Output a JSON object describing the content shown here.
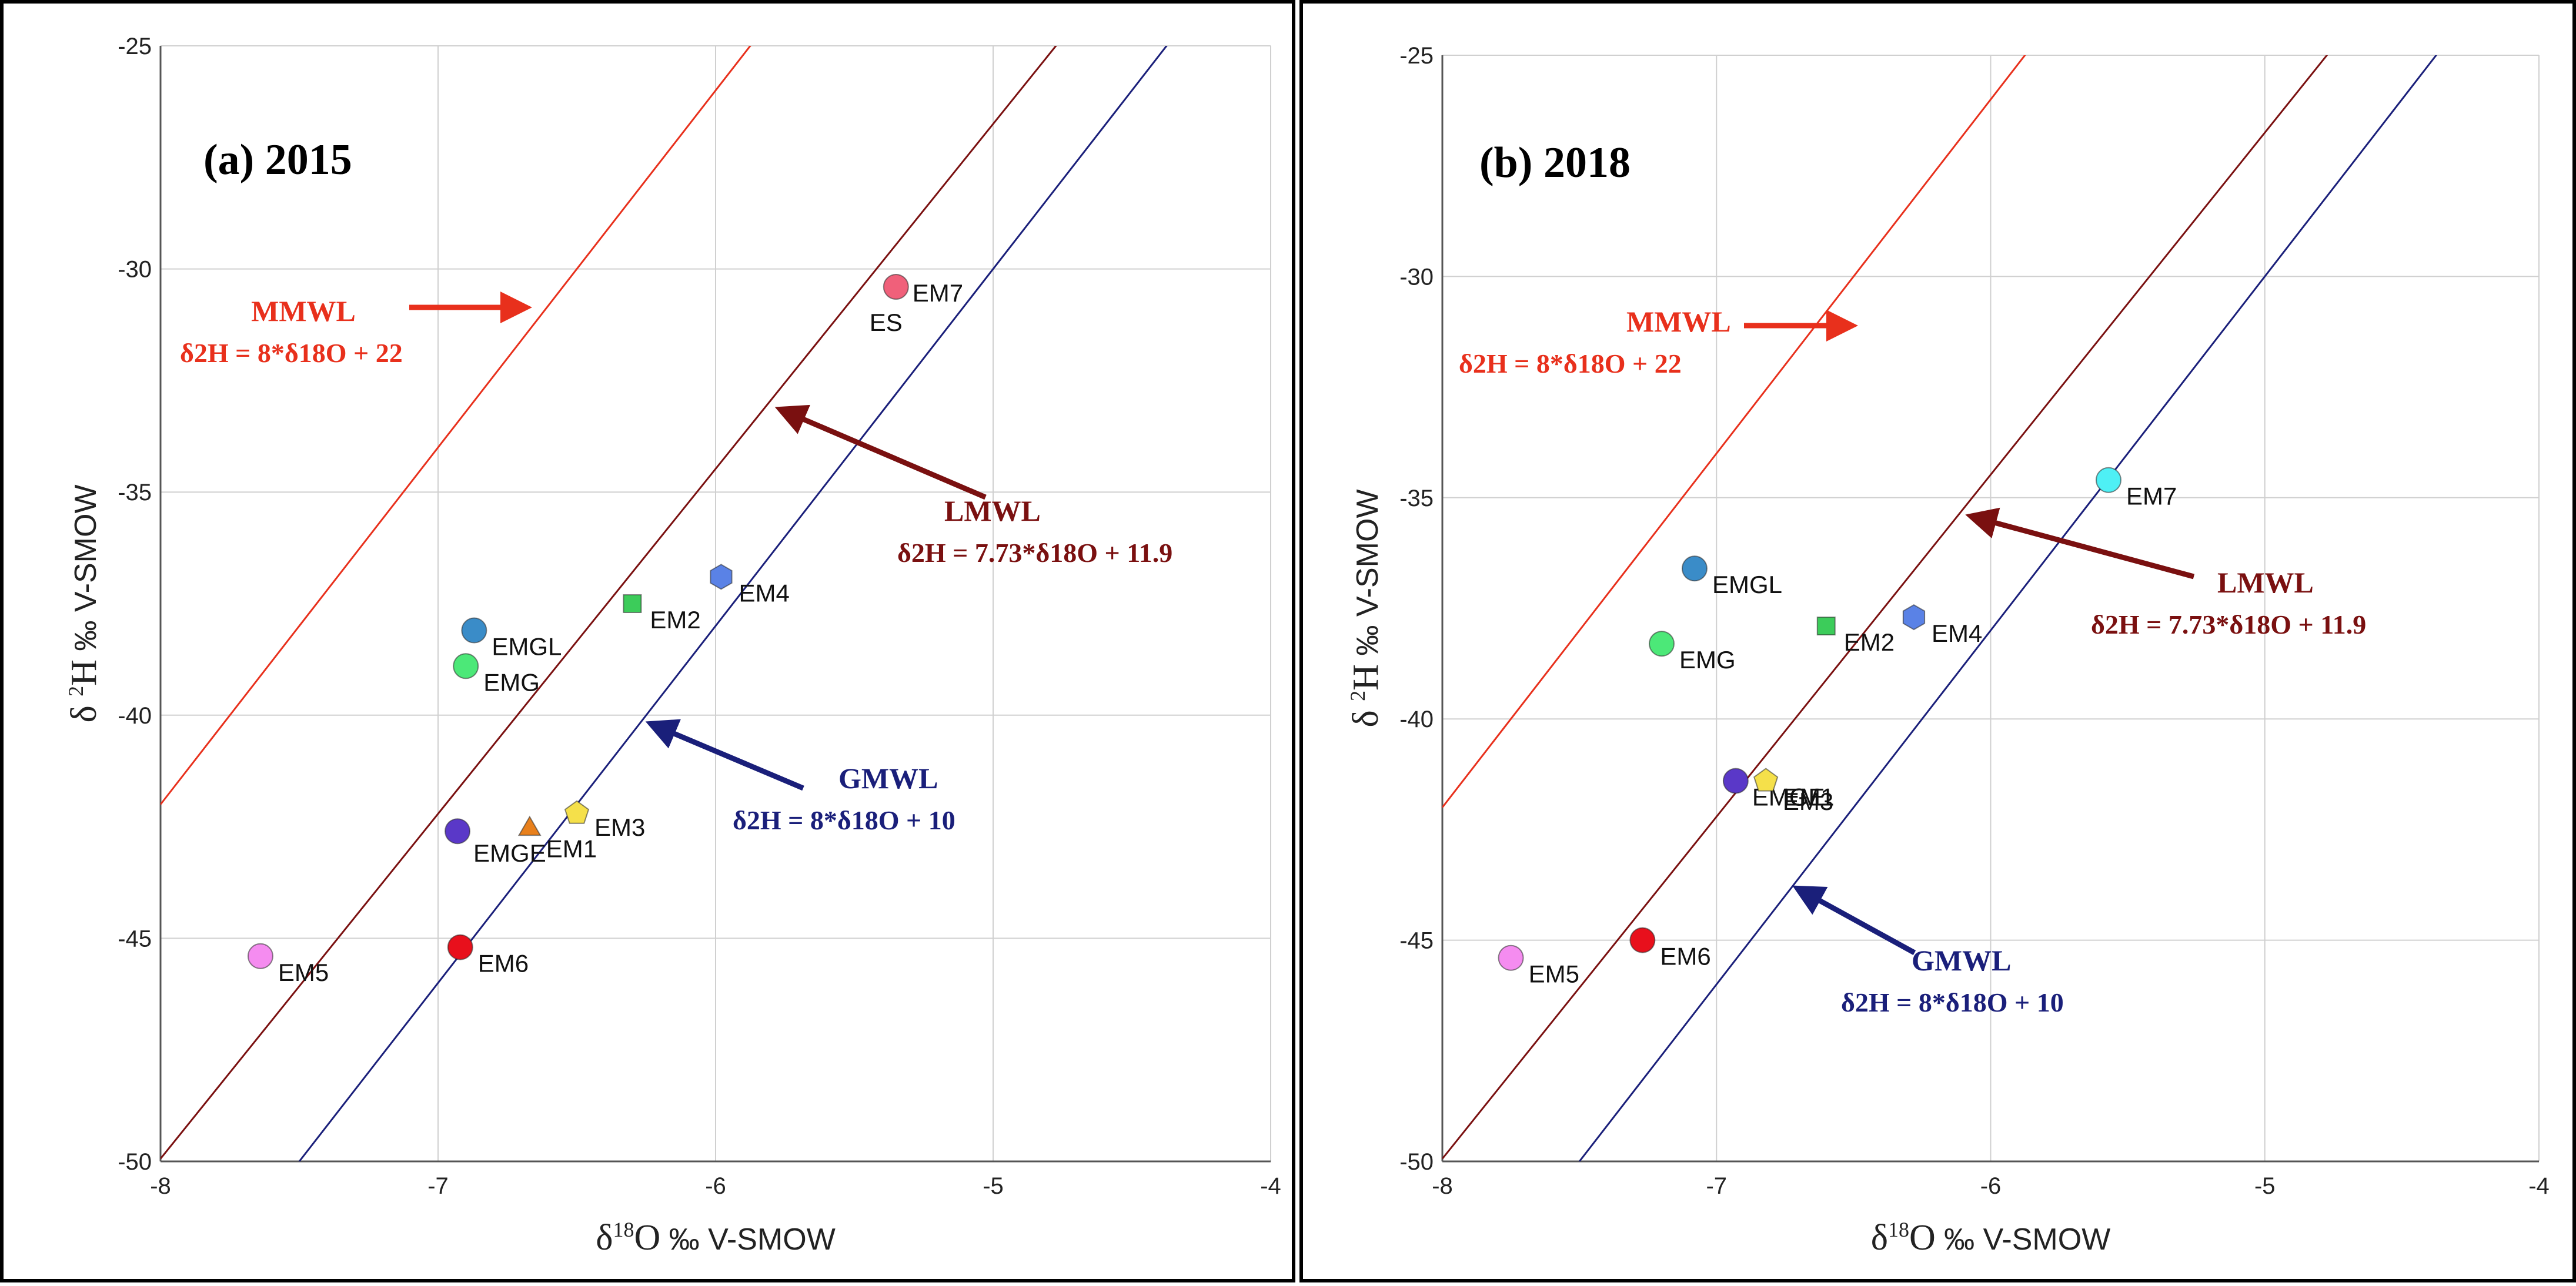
{
  "chart_data": [
    {
      "type": "scatter",
      "title": "(a) 2015",
      "xlabel": {
        "prefix": "δ",
        "sup": "18",
        "main": "O",
        "suffix": " ‰ V-SMOW"
      },
      "ylabel": {
        "prefix": "δ ",
        "sup": "2",
        "main": "H",
        "suffix": " ‰ V-SMOW"
      },
      "xlim": [
        -8,
        -4
      ],
      "ylim": [
        -50,
        -25
      ],
      "x_ticks": [
        -8,
        -7,
        -6,
        -5,
        -4
      ],
      "y_ticks": [
        -50,
        -45,
        -40,
        -35,
        -30,
        -25
      ],
      "grid": true,
      "lines": [
        {
          "name": "MMWL",
          "equation": "δ2H = 8*δ18O + 22",
          "slope": 8,
          "intercept": 22,
          "color": "#e8301c"
        },
        {
          "name": "LMWL",
          "equation": "δ2H = 7.73*δ18O + 11.9",
          "slope": 7.73,
          "intercept": 11.9,
          "color": "#7a1010"
        },
        {
          "name": "GMWL",
          "equation": "δ2H = 8*δ18O + 10",
          "slope": 8,
          "intercept": 10,
          "color": "#1a1f7a"
        }
      ],
      "points": [
        {
          "label": "EM7",
          "extra_label": "ES",
          "x": -5.35,
          "y": -30.4,
          "marker": "circle",
          "color": "#f0607a"
        },
        {
          "label": "EM4",
          "x": -5.98,
          "y": -36.9,
          "marker": "hexagon",
          "color": "#5a82e6"
        },
        {
          "label": "EM2",
          "x": -6.3,
          "y": -37.5,
          "marker": "square",
          "color": "#3ccc5a"
        },
        {
          "label": "EMGL",
          "x": -6.87,
          "y": -38.1,
          "marker": "circle",
          "color": "#3a8cc8"
        },
        {
          "label": "EMG",
          "x": -6.9,
          "y": -38.9,
          "marker": "circle",
          "color": "#4ce878"
        },
        {
          "label": "EM3",
          "x": -6.5,
          "y": -42.2,
          "marker": "pentagon",
          "color": "#f5e04a"
        },
        {
          "label": "EM1",
          "x": -6.67,
          "y": -42.5,
          "marker": "triangle",
          "color": "#e8801c"
        },
        {
          "label": "EMGE",
          "x": -6.93,
          "y": -42.6,
          "marker": "circle",
          "color": "#5a38c8"
        },
        {
          "label": "EM6",
          "x": -6.92,
          "y": -45.2,
          "marker": "circle",
          "color": "#e8101c"
        },
        {
          "label": "EM5",
          "x": -7.64,
          "y": -45.4,
          "marker": "circle",
          "color": "#f58cf0"
        }
      ]
    },
    {
      "type": "scatter",
      "title": "(b) 2018",
      "xlabel": {
        "prefix": "δ",
        "sup": "18",
        "main": "O",
        "suffix": " ‰ V-SMOW"
      },
      "ylabel": {
        "prefix": "δ ",
        "sup": "2",
        "main": "H",
        "suffix": " ‰ V-SMOW"
      },
      "xlim": [
        -8,
        -4
      ],
      "ylim": [
        -50,
        -25
      ],
      "x_ticks": [
        -8,
        -7,
        -6,
        -5,
        -4
      ],
      "y_ticks": [
        -50,
        -45,
        -40,
        -35,
        -30,
        -25
      ],
      "grid": true,
      "lines": [
        {
          "name": "MMWL",
          "equation": "δ2H = 8*δ18O + 22",
          "slope": 8,
          "intercept": 22,
          "color": "#e8301c"
        },
        {
          "name": "LMWL",
          "equation": "δ2H = 7.73*δ18O + 11.9",
          "slope": 7.73,
          "intercept": 11.9,
          "color": "#7a1010"
        },
        {
          "name": "GMWL",
          "equation": "δ2H = 8*δ18O + 10",
          "slope": 8,
          "intercept": 10,
          "color": "#1a1f7a"
        }
      ],
      "points": [
        {
          "label": "EM7",
          "x": -5.57,
          "y": -34.6,
          "marker": "circle",
          "color": "#4ef0f5"
        },
        {
          "label": "EMGL",
          "x": -7.08,
          "y": -36.6,
          "marker": "circle",
          "color": "#3a8cc8"
        },
        {
          "label": "EM2",
          "x": -6.6,
          "y": -37.9,
          "marker": "square",
          "color": "#3ccc5a"
        },
        {
          "label": "EM4",
          "x": -6.28,
          "y": -37.7,
          "marker": "hexagon",
          "color": "#5a82e6"
        },
        {
          "label": "EMG",
          "x": -7.2,
          "y": -38.3,
          "marker": "circle",
          "color": "#4ce878"
        },
        {
          "label": "EMGE",
          "x": -6.93,
          "y": -41.4,
          "marker": "circle",
          "color": "#5a38c8"
        },
        {
          "label": "EM1",
          "x": -6.82,
          "y": -41.4,
          "marker": "pentagon",
          "color": "#f5e04a"
        },
        {
          "label": "EM3",
          "x": -6.78,
          "y": -41.5,
          "marker": "none",
          "color": "#f5e04a"
        },
        {
          "label": "EM6",
          "x": -7.27,
          "y": -45.0,
          "marker": "circle",
          "color": "#e8101c"
        },
        {
          "label": "EM5",
          "x": -7.75,
          "y": -45.4,
          "marker": "circle",
          "color": "#f58cf0"
        }
      ]
    }
  ]
}
